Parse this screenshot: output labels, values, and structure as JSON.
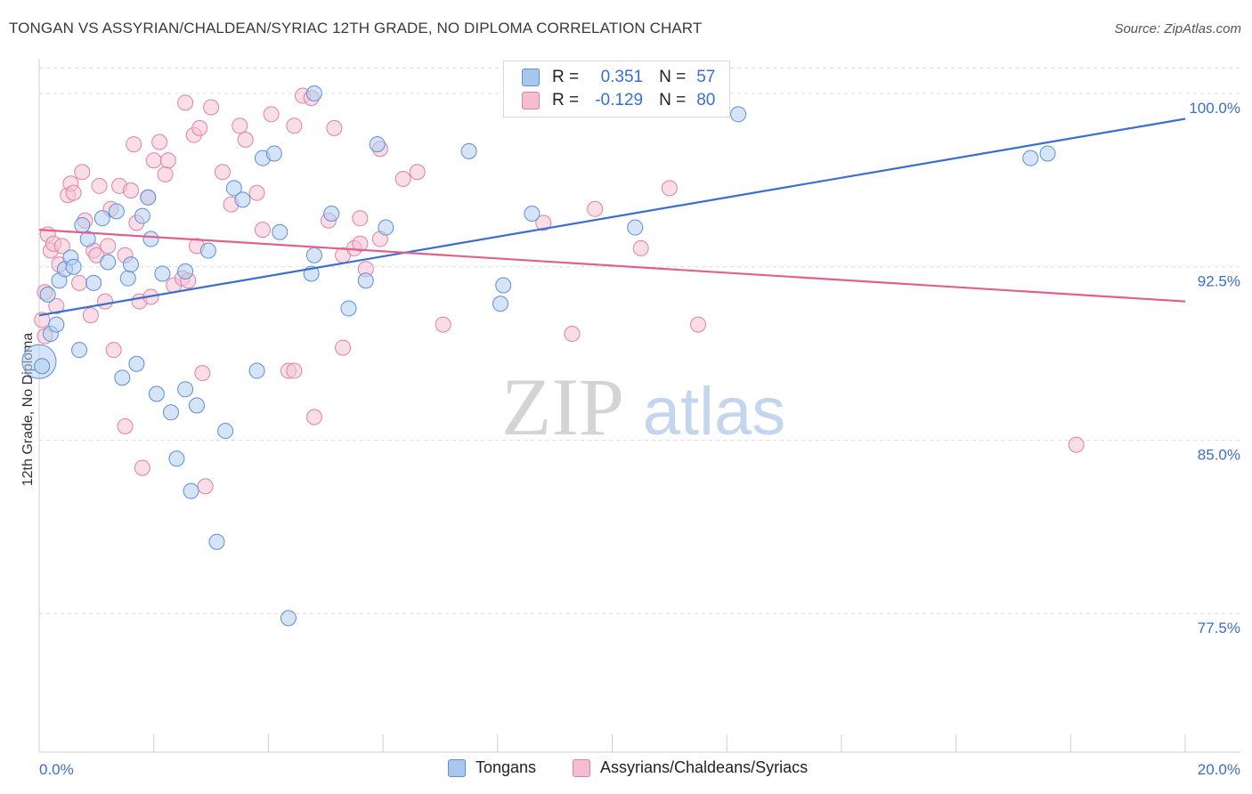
{
  "title": "TONGAN VS ASSYRIAN/CHALDEAN/SYRIAC 12TH GRADE, NO DIPLOMA CORRELATION CHART",
  "source": "Source: ZipAtlas.com",
  "watermark": {
    "zip": "ZIP",
    "atlas": "atlas"
  },
  "legend": {
    "rows": [
      {
        "r_label": "R =",
        "r_value": "0.351",
        "n_label": "N =",
        "n_value": "57",
        "color": "#a9c6ef",
        "stroke": "#5b8fd8"
      },
      {
        "r_label": "R =",
        "r_value": "-0.129",
        "n_label": "N =",
        "n_value": "80",
        "color": "#f6bdd0",
        "stroke": "#e2819f"
      }
    ]
  },
  "bottom_legend": [
    {
      "label": "Tongans",
      "color": "#a9c6ef",
      "stroke": "#5b8fd8"
    },
    {
      "label": "Assyrians/Chaldeans/Syriacs",
      "color": "#f6bdd0",
      "stroke": "#e2819f"
    }
  ],
  "chart_data": {
    "type": "scatter",
    "title": "TONGAN VS ASSYRIAN/CHALDEAN/SYRIAC 12TH GRADE, NO DIPLOMA CORRELATION CHART",
    "xlabel": "",
    "ylabel": "12th Grade, No Diploma",
    "xlim": [
      0,
      20
    ],
    "ylim": [
      71.5,
      101.5
    ],
    "x_tick_labels": [
      "0.0%",
      "20.0%"
    ],
    "y_ticks": [
      77.5,
      85.0,
      92.5,
      100.0
    ],
    "y_tick_labels": [
      "77.5%",
      "85.0%",
      "92.5%",
      "100.0%"
    ],
    "grid": true,
    "legend_position": "top-center",
    "colors": {
      "blue_series": "#3a6fd0",
      "pink_series": "#e0608e",
      "axis_text": "#3a6fd0"
    },
    "series": [
      {
        "name": "Tongans",
        "color": "#5b8fd8",
        "trend": {
          "x": [
            0,
            20
          ],
          "y": [
            90.4,
            98.9
          ]
        },
        "points": [
          [
            0.0,
            88.4,
            "L"
          ],
          [
            0.15,
            91.3
          ],
          [
            0.2,
            89.6
          ],
          [
            0.3,
            90.0
          ],
          [
            0.35,
            91.9
          ],
          [
            0.45,
            92.4
          ],
          [
            0.55,
            92.9
          ],
          [
            0.6,
            92.5
          ],
          [
            0.75,
            94.3
          ],
          [
            0.7,
            88.9
          ],
          [
            0.85,
            93.7
          ],
          [
            0.95,
            91.8
          ],
          [
            1.1,
            94.6
          ],
          [
            1.2,
            92.7
          ],
          [
            1.35,
            94.9
          ],
          [
            1.45,
            87.7
          ],
          [
            1.55,
            92.0
          ],
          [
            1.6,
            92.6
          ],
          [
            1.7,
            88.3
          ],
          [
            1.8,
            94.7
          ],
          [
            1.9,
            95.5
          ],
          [
            1.95,
            93.7
          ],
          [
            2.05,
            87.0
          ],
          [
            2.15,
            92.2
          ],
          [
            2.3,
            86.2
          ],
          [
            2.4,
            84.2
          ],
          [
            2.55,
            92.3
          ],
          [
            2.55,
            87.2
          ],
          [
            2.65,
            82.8
          ],
          [
            2.75,
            86.5
          ],
          [
            2.95,
            93.2
          ],
          [
            3.1,
            80.6
          ],
          [
            3.25,
            85.4
          ],
          [
            3.4,
            95.9
          ],
          [
            3.55,
            95.4
          ],
          [
            3.8,
            88.0
          ],
          [
            3.9,
            97.2
          ],
          [
            4.1,
            97.4
          ],
          [
            4.2,
            94.0
          ],
          [
            4.35,
            77.3
          ],
          [
            4.75,
            92.2
          ],
          [
            4.8,
            93.0
          ],
          [
            4.8,
            100.0
          ],
          [
            5.1,
            94.8
          ],
          [
            5.4,
            90.7
          ],
          [
            5.7,
            91.9
          ],
          [
            5.9,
            97.8
          ],
          [
            6.05,
            94.2
          ],
          [
            7.5,
            97.5
          ],
          [
            8.05,
            90.9
          ],
          [
            8.1,
            91.7
          ],
          [
            8.6,
            94.8
          ],
          [
            10.4,
            94.2
          ],
          [
            12.2,
            99.1
          ],
          [
            17.3,
            97.2
          ],
          [
            17.6,
            97.4
          ],
          [
            0.05,
            88.2
          ]
        ]
      },
      {
        "name": "Assyrians/Chaldeans/Syriacs",
        "color": "#e2819f",
        "trend": {
          "x": [
            0,
            20
          ],
          "y": [
            94.1,
            91.0
          ]
        },
        "points": [
          [
            0.05,
            90.2
          ],
          [
            0.1,
            91.4
          ],
          [
            0.15,
            93.9
          ],
          [
            0.2,
            93.2
          ],
          [
            0.25,
            93.5
          ],
          [
            0.3,
            90.8
          ],
          [
            0.35,
            92.6
          ],
          [
            0.4,
            93.4
          ],
          [
            0.5,
            95.6
          ],
          [
            0.55,
            96.1
          ],
          [
            0.6,
            95.7
          ],
          [
            0.7,
            91.8
          ],
          [
            0.75,
            96.6
          ],
          [
            0.8,
            94.5
          ],
          [
            0.9,
            90.4
          ],
          [
            0.95,
            93.2
          ],
          [
            1.0,
            93.0
          ],
          [
            1.05,
            96.0
          ],
          [
            1.15,
            91.0
          ],
          [
            1.2,
            93.4
          ],
          [
            1.25,
            95.0
          ],
          [
            1.3,
            88.9
          ],
          [
            1.4,
            96.0
          ],
          [
            1.5,
            93.0
          ],
          [
            1.5,
            85.6
          ],
          [
            1.6,
            95.8
          ],
          [
            1.65,
            97.8
          ],
          [
            1.7,
            94.4
          ],
          [
            1.75,
            91.0
          ],
          [
            1.8,
            83.8
          ],
          [
            1.9,
            95.5
          ],
          [
            1.95,
            91.2
          ],
          [
            2.0,
            97.1
          ],
          [
            2.1,
            97.9
          ],
          [
            2.2,
            96.5
          ],
          [
            2.25,
            97.1
          ],
          [
            2.35,
            91.7
          ],
          [
            2.5,
            92.0
          ],
          [
            2.55,
            99.6
          ],
          [
            2.6,
            91.9
          ],
          [
            2.7,
            98.2
          ],
          [
            2.75,
            93.4
          ],
          [
            2.8,
            98.5
          ],
          [
            2.85,
            87.9
          ],
          [
            2.9,
            83.0
          ],
          [
            3.0,
            99.4
          ],
          [
            3.2,
            96.6
          ],
          [
            3.35,
            95.2
          ],
          [
            3.5,
            98.6
          ],
          [
            3.6,
            98.0
          ],
          [
            3.8,
            95.7
          ],
          [
            3.9,
            94.1
          ],
          [
            4.05,
            99.1
          ],
          [
            4.35,
            88.0
          ],
          [
            4.45,
            98.6
          ],
          [
            4.45,
            88.0
          ],
          [
            4.6,
            99.9
          ],
          [
            4.75,
            99.8
          ],
          [
            4.8,
            86.0
          ],
          [
            5.05,
            94.5
          ],
          [
            5.15,
            98.5
          ],
          [
            5.3,
            89.0
          ],
          [
            5.3,
            93.0
          ],
          [
            5.5,
            93.3
          ],
          [
            5.6,
            94.6
          ],
          [
            5.6,
            93.5
          ],
          [
            5.7,
            92.4
          ],
          [
            5.95,
            93.7
          ],
          [
            5.95,
            97.6
          ],
          [
            6.35,
            96.3
          ],
          [
            6.6,
            96.6
          ],
          [
            7.05,
            90.0
          ],
          [
            8.8,
            94.4
          ],
          [
            9.3,
            89.6
          ],
          [
            9.7,
            95.0
          ],
          [
            10.5,
            93.3
          ],
          [
            11.0,
            95.9
          ],
          [
            11.5,
            90.0
          ],
          [
            18.1,
            84.8
          ],
          [
            0.1,
            89.5
          ]
        ]
      }
    ]
  }
}
